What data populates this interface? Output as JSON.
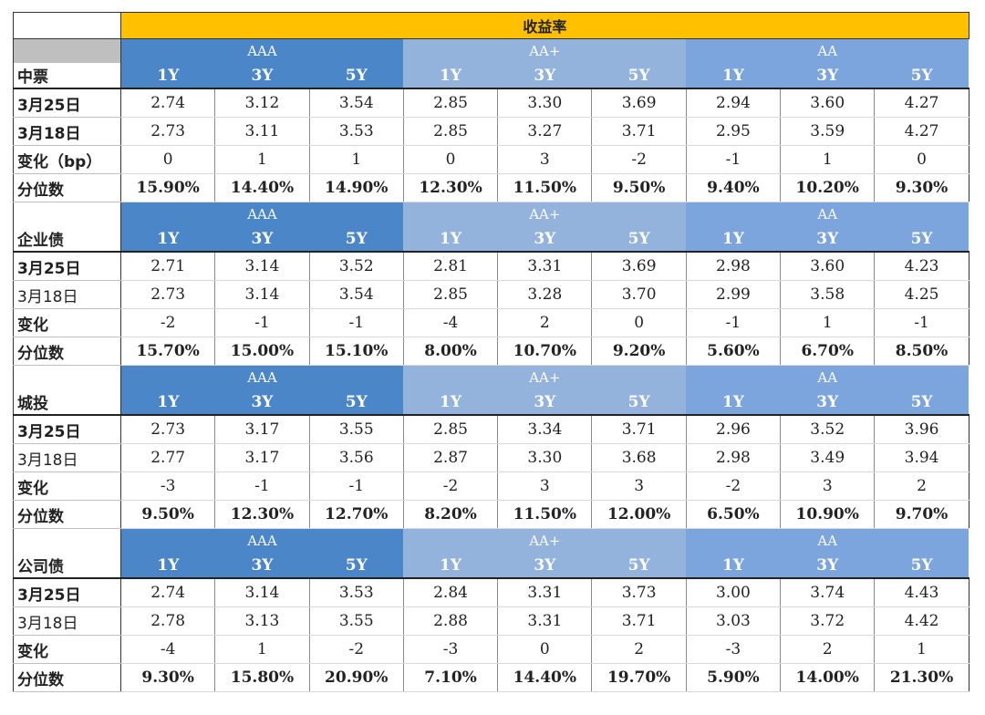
{
  "header": {
    "title": "收益率"
  },
  "groups": [
    {
      "name": "中票",
      "ratings": [
        "AAA",
        "AA+",
        "AA"
      ],
      "tenors": [
        "1Y",
        "3Y",
        "5Y",
        "1Y",
        "3Y",
        "5Y",
        "1Y",
        "3Y",
        "5Y"
      ],
      "rows": [
        {
          "label": "3月25日",
          "bold": true,
          "values": [
            "2.74",
            "3.12",
            "3.54",
            "2.85",
            "3.30",
            "3.69",
            "2.94",
            "3.60",
            "4.27"
          ]
        },
        {
          "label": "3月18日",
          "bold": true,
          "values": [
            "2.73",
            "3.11",
            "3.53",
            "2.85",
            "3.27",
            "3.71",
            "2.95",
            "3.59",
            "4.27"
          ]
        },
        {
          "label": "变化（bp）",
          "bold": true,
          "values": [
            "0",
            "1",
            "1",
            "0",
            "3",
            "-2",
            "-1",
            "1",
            "0"
          ]
        },
        {
          "label": "分位数",
          "bold": true,
          "pct": true,
          "values": [
            "15.90%",
            "14.40%",
            "14.90%",
            "12.30%",
            "11.50%",
            "9.50%",
            "9.40%",
            "10.20%",
            "9.30%"
          ]
        }
      ]
    },
    {
      "name": "企业债",
      "ratings": [
        "AAA",
        "AA+",
        "AA"
      ],
      "tenors": [
        "1Y",
        "3Y",
        "5Y",
        "1Y",
        "3Y",
        "5Y",
        "1Y",
        "3Y",
        "5Y"
      ],
      "rows": [
        {
          "label": "3月25日",
          "bold": true,
          "values": [
            "2.71",
            "3.14",
            "3.52",
            "2.81",
            "3.31",
            "3.69",
            "2.98",
            "3.60",
            "4.23"
          ]
        },
        {
          "label": "3月18日",
          "bold": false,
          "values": [
            "2.73",
            "3.14",
            "3.54",
            "2.85",
            "3.28",
            "3.70",
            "2.99",
            "3.58",
            "4.25"
          ]
        },
        {
          "label": "变化",
          "bold": true,
          "values": [
            "-2",
            "-1",
            "-1",
            "-4",
            "2",
            "0",
            "-1",
            "1",
            "-1"
          ]
        },
        {
          "label": "分位数",
          "bold": true,
          "pct": true,
          "values": [
            "15.70%",
            "15.00%",
            "15.10%",
            "8.00%",
            "10.70%",
            "9.20%",
            "5.60%",
            "6.70%",
            "8.50%"
          ]
        }
      ]
    },
    {
      "name": "城投",
      "ratings": [
        "AAA",
        "AA+",
        "AA"
      ],
      "tenors": [
        "1Y",
        "3Y",
        "5Y",
        "1Y",
        "3Y",
        "5Y",
        "1Y",
        "3Y",
        "5Y"
      ],
      "rows": [
        {
          "label": "3月25日",
          "bold": true,
          "values": [
            "2.73",
            "3.17",
            "3.55",
            "2.85",
            "3.34",
            "3.71",
            "2.96",
            "3.52",
            "3.96"
          ]
        },
        {
          "label": "3月18日",
          "bold": false,
          "values": [
            "2.77",
            "3.17",
            "3.56",
            "2.87",
            "3.30",
            "3.68",
            "2.98",
            "3.49",
            "3.94"
          ]
        },
        {
          "label": "变化",
          "bold": true,
          "values": [
            "-3",
            "-1",
            "-1",
            "-2",
            "3",
            "3",
            "-2",
            "3",
            "2"
          ]
        },
        {
          "label": "分位数",
          "bold": true,
          "pct": true,
          "values": [
            "9.50%",
            "12.30%",
            "12.70%",
            "8.20%",
            "11.50%",
            "12.00%",
            "6.50%",
            "10.90%",
            "9.70%"
          ]
        }
      ]
    },
    {
      "name": "公司债",
      "ratings": [
        "AAA",
        "AA+",
        "AA"
      ],
      "tenors": [
        "1Y",
        "3Y",
        "5Y",
        "1Y",
        "3Y",
        "5Y",
        "1Y",
        "3Y",
        "5Y"
      ],
      "rows": [
        {
          "label": "3月25日",
          "bold": true,
          "values": [
            "2.74",
            "3.14",
            "3.53",
            "2.84",
            "3.31",
            "3.73",
            "3.00",
            "3.74",
            "4.43"
          ]
        },
        {
          "label": "3月18日",
          "bold": false,
          "values": [
            "2.78",
            "3.13",
            "3.55",
            "2.88",
            "3.31",
            "3.71",
            "3.03",
            "3.72",
            "4.42"
          ]
        },
        {
          "label": "变化",
          "bold": true,
          "values": [
            "-4",
            "1",
            "-2",
            "-3",
            "0",
            "2",
            "-3",
            "2",
            "1"
          ]
        },
        {
          "label": "分位数",
          "bold": true,
          "pct": true,
          "values": [
            "9.30%",
            "15.80%",
            "20.90%",
            "7.10%",
            "14.40%",
            "19.70%",
            "5.90%",
            "14.00%",
            "21.30%"
          ]
        }
      ]
    }
  ],
  "colors": {
    "title_bar": "#ffc000",
    "aaa": "#4a86c8",
    "aa_plus": "#93b3dc",
    "aa": "#7ba5dc"
  }
}
